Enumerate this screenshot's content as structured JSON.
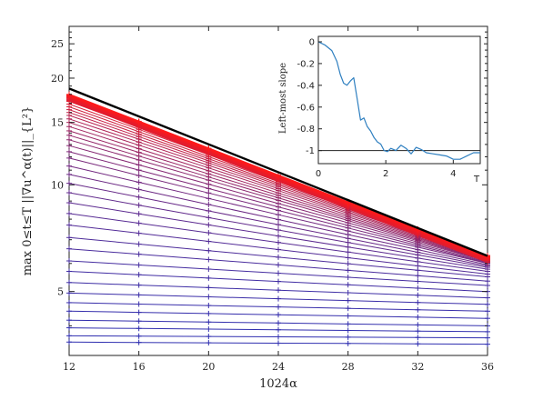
{
  "chart_data": [
    {
      "type": "line",
      "xlabel": "1024α",
      "ylabel": "max 0≤t≤T ||∇u^α(t)||_{L²}",
      "yscale": "log",
      "xlim": [
        12,
        36
      ],
      "ylim": [
        3.3,
        28
      ],
      "x": [
        12,
        16,
        20,
        24,
        28,
        32,
        36
      ],
      "x_tick_labels": [
        "12",
        "16",
        "20",
        "24",
        "28",
        "32",
        "36"
      ],
      "y_ticks": [
        5,
        10,
        15,
        20,
        25
      ],
      "y_tick_labels": [
        "5",
        "10",
        "15",
        "20",
        "25"
      ],
      "reference_line": {
        "color": "#000000",
        "x": [
          12,
          36
        ],
        "y": [
          18.7,
          6.3
        ]
      },
      "colors": {
        "low": "#2f2fb0",
        "high": "#ff1a1a",
        "reference": "#000000"
      },
      "series_groups": [
        {
          "description_count": 34,
          "color_from": "low",
          "endpoints_at_x12": [
            3.6,
            3.75,
            3.95,
            4.15,
            4.4,
            4.65,
            4.95,
            5.3,
            5.7,
            6.1,
            6.6,
            7.1,
            7.7,
            8.3,
            8.9,
            9.5,
            10.1,
            10.7,
            11.3,
            11.9,
            12.4,
            12.9,
            13.4,
            13.8,
            14.2,
            14.6,
            15.0,
            15.35,
            15.7,
            16.0,
            16.3,
            16.6,
            16.9,
            17.2
          ],
          "endpoints_at_x36": [
            3.55,
            3.7,
            3.85,
            4.0,
            4.2,
            4.4,
            4.6,
            4.8,
            5.0,
            5.2,
            5.35,
            5.5,
            5.6,
            5.7,
            5.78,
            5.85,
            5.9,
            5.95,
            6.0,
            6.02,
            6.05,
            6.08,
            6.1,
            6.12,
            6.14,
            6.16,
            6.18,
            6.2,
            6.22,
            6.24,
            6.26,
            6.28,
            6.3,
            6.32
          ]
        },
        {
          "description_count": 12,
          "color_from": "high",
          "endpoints_at_x12": [
            17.3,
            17.4,
            17.5,
            17.6,
            17.65,
            17.7,
            17.75,
            17.8,
            17.85,
            17.9,
            17.95,
            18.0
          ],
          "endpoints_at_x36": [
            6.05,
            6.1,
            6.12,
            6.14,
            6.16,
            6.18,
            6.2,
            6.22,
            6.24,
            6.26,
            6.28,
            6.3
          ]
        }
      ]
    },
    {
      "type": "line",
      "ylabel": "Left-most slope",
      "xlim": [
        0,
        4.8
      ],
      "ylim": [
        -1.12,
        0.05
      ],
      "x_ticks": [
        0,
        2,
        4
      ],
      "x_tick_labels": [
        "0",
        "2",
        "4"
      ],
      "x_end_label": "T",
      "y_ticks": [
        0,
        -0.2,
        -0.4,
        -0.6,
        -0.8,
        -1
      ],
      "y_tick_labels": [
        "0",
        "-0.2",
        "-0.4",
        "-0.6",
        "-0.8",
        "-1"
      ],
      "reference_value": -1,
      "colors": {
        "series": "#2e7fc0",
        "reference": "#222222"
      },
      "series": [
        {
          "x": [
            0,
            0.2,
            0.4,
            0.55,
            0.65,
            0.75,
            0.85,
            0.95,
            1.05,
            1.15,
            1.25,
            1.35,
            1.45,
            1.55,
            1.65,
            1.75,
            1.85,
            1.95,
            2.05,
            2.15,
            2.3,
            2.45,
            2.6,
            2.75,
            2.9,
            3.05,
            3.2,
            3.4,
            3.6,
            3.8,
            4.0,
            4.2,
            4.4,
            4.6,
            4.8
          ],
          "y": [
            0,
            -0.03,
            -0.08,
            -0.18,
            -0.3,
            -0.38,
            -0.4,
            -0.36,
            -0.33,
            -0.52,
            -0.72,
            -0.7,
            -0.78,
            -0.82,
            -0.88,
            -0.92,
            -0.94,
            -1.0,
            -1.01,
            -0.98,
            -1.0,
            -0.95,
            -0.98,
            -1.03,
            -0.97,
            -0.99,
            -1.02,
            -1.03,
            -1.04,
            -1.05,
            -1.08,
            -1.08,
            -1.05,
            -1.02,
            -1.02
          ]
        }
      ]
    }
  ]
}
